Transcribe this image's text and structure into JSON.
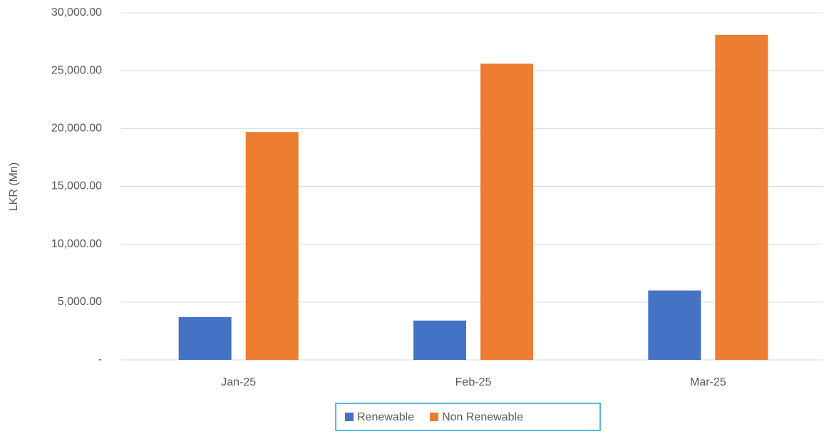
{
  "chart_data": {
    "type": "bar",
    "y_label": "LKR (Mn)",
    "categories": [
      "Jan-25",
      "Feb-25",
      "Mar-25"
    ],
    "series": [
      {
        "name": "Renewable",
        "color": "#4472c4",
        "values": [
          3700,
          3400,
          6000
        ]
      },
      {
        "name": "Non Renewable",
        "color": "#ed7d31",
        "values": [
          19700,
          25600,
          28100
        ]
      }
    ],
    "ylim": [
      0,
      30000
    ],
    "yticks": [
      {
        "value": 0,
        "label": "-"
      },
      {
        "value": 5000,
        "label": "5,000.00"
      },
      {
        "value": 10000,
        "label": "10,000.00"
      },
      {
        "value": 15000,
        "label": "15,000.00"
      },
      {
        "value": 20000,
        "label": "20,000.00"
      },
      {
        "value": 25000,
        "label": "25,000.00"
      },
      {
        "value": 30000,
        "label": "30,000.00"
      }
    ],
    "grid": true,
    "legend": "bottom"
  }
}
